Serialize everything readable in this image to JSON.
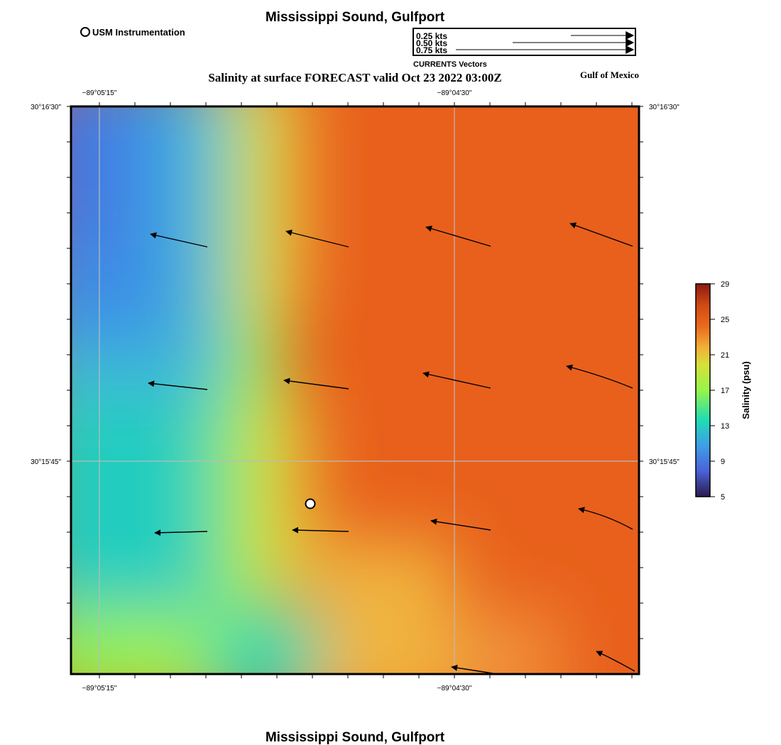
{
  "header": {
    "title": "Mississippi Sound, Gulfport",
    "subtitle": "Salinity at surface FORECAST valid Oct 23 2022 03:00Z",
    "region_label": "Gulf of Mexico",
    "footer_title": "Mississippi Sound, Gulfport"
  },
  "legend": {
    "instrument_label": "USM Instrumentation",
    "vector_scale": {
      "caption": "CURRENTS Vectors",
      "entries": [
        "0.25 kts",
        "0.50 kts",
        "0.75 kts"
      ]
    }
  },
  "axes": {
    "top_ticks": [
      "−89°05'15\"",
      "−89°04'30\""
    ],
    "bottom_ticks": [
      "−89°05'15\"",
      "−89°04'30\""
    ],
    "left_ticks": [
      "30°16'30\"",
      "30°15'45\""
    ],
    "right_ticks": [
      "30°16'30\"",
      "30°15'45\""
    ]
  },
  "colorbar": {
    "label": "Salinity (psu)",
    "ticks": [
      "29",
      "25",
      "21",
      "17",
      "13",
      "9",
      "5"
    ],
    "range": [
      5,
      29
    ],
    "colors": [
      "#2a1b4e",
      "#4a62d8",
      "#3e9ee8",
      "#1fdcb4",
      "#97f54a",
      "#d6e03a",
      "#f2b03a",
      "#ea6a1e",
      "#d04a14",
      "#8a1a10"
    ]
  },
  "colors": {
    "frame": "#000000",
    "grid": "#bbbbbb",
    "low_salinity": "#4a78e0",
    "mid_salinity": "#9cf050",
    "high_salinity": "#e8601c"
  }
}
